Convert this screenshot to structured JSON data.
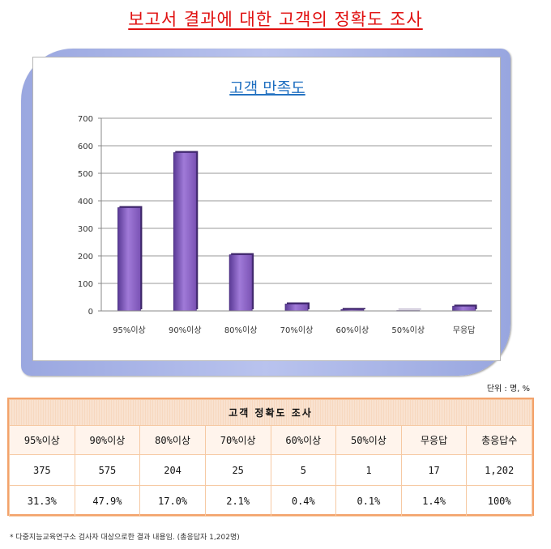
{
  "page_title": "보고서 결과에 대한 고객의 정확도 조사",
  "chart_data": {
    "type": "bar",
    "title": "고객 만족도",
    "categories": [
      "95%이상",
      "90%이상",
      "80%이상",
      "70%이상",
      "60%이상",
      "50%이상",
      "무응답"
    ],
    "values": [
      375,
      575,
      204,
      25,
      5,
      1,
      17
    ],
    "ylim": [
      0,
      700
    ],
    "yticks": [
      0,
      100,
      200,
      300,
      400,
      500,
      600,
      700
    ],
    "grid": true,
    "xlabel": "",
    "ylabel": "",
    "bar_color": "#7a52b4",
    "frame_color": "#9aa7e0"
  },
  "unit_note": "단위 : 명, %",
  "table": {
    "title": "고객 정확도 조사",
    "headers": [
      "95%이상",
      "90%이상",
      "80%이상",
      "70%이상",
      "60%이상",
      "50%이상",
      "무응답",
      "총응답수"
    ],
    "counts": [
      "375",
      "575",
      "204",
      "25",
      "5",
      "1",
      "17",
      "1,202"
    ],
    "percents": [
      "31.3%",
      "47.9%",
      "17.0%",
      "2.1%",
      "0.4%",
      "0.1%",
      "1.4%",
      "100%"
    ]
  },
  "footnote": "* 다중지능교육연구소 검사자 대상으로한 결과 내용임. (총응답자 1,202명)"
}
